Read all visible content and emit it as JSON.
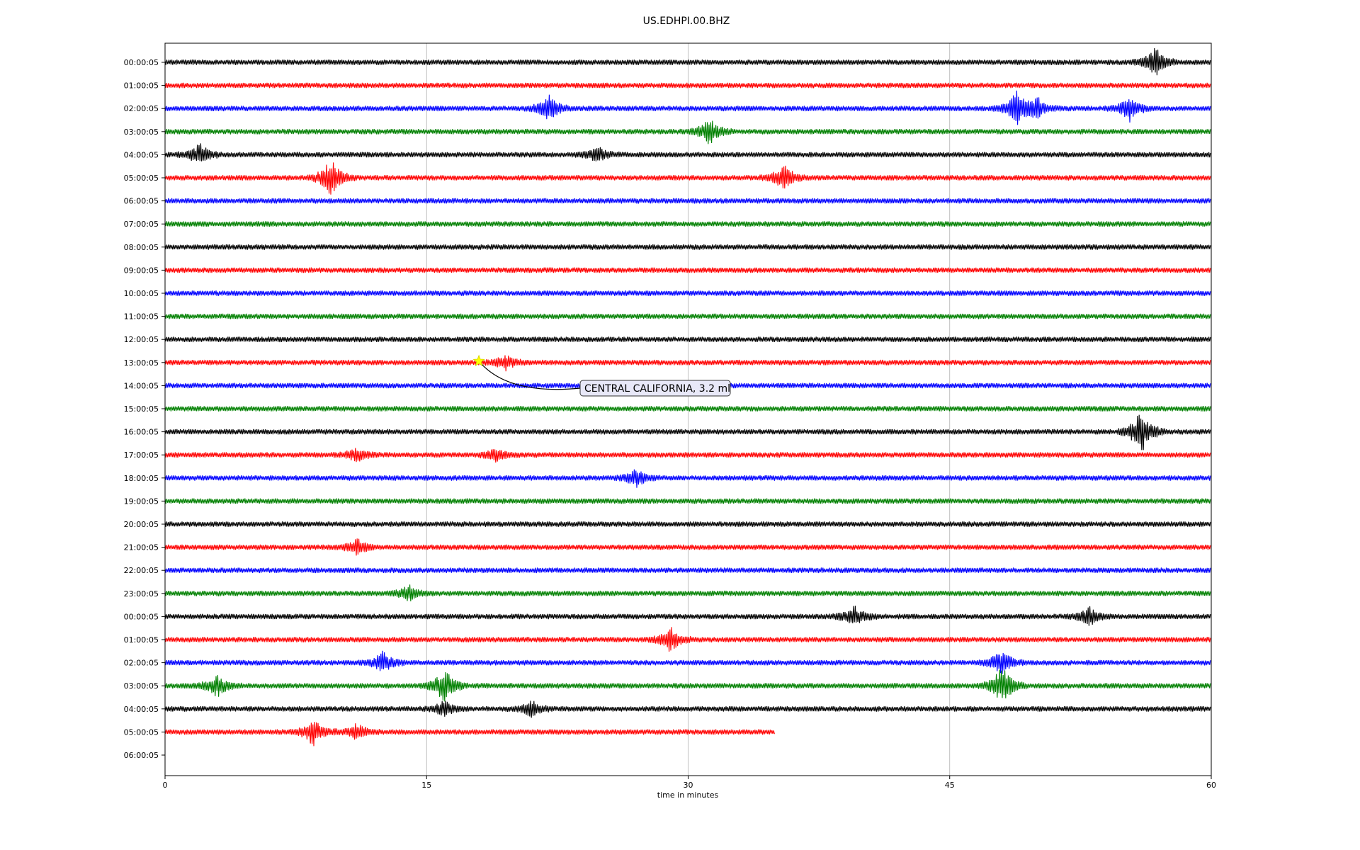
{
  "chart_data": {
    "type": "line",
    "title": "US.EDHPI.00.BHZ",
    "xlabel": "time in minutes",
    "ylabel": "",
    "xlim": [
      0,
      60
    ],
    "x_ticks": [
      "0",
      "15",
      "30",
      "45",
      "60"
    ],
    "x_tick_values": [
      0,
      15,
      30,
      45,
      60
    ],
    "grid": "vertical",
    "row_labels": [
      "00:00:05",
      "01:00:05",
      "02:00:05",
      "03:00:05",
      "04:00:05",
      "05:00:05",
      "06:00:05",
      "07:00:05",
      "08:00:05",
      "09:00:05",
      "10:00:05",
      "11:00:05",
      "12:00:05",
      "13:00:05",
      "14:00:05",
      "15:00:05",
      "16:00:05",
      "17:00:05",
      "18:00:05",
      "19:00:05",
      "20:00:05",
      "21:00:05",
      "22:00:05",
      "23:00:05",
      "00:00:05",
      "01:00:05",
      "02:00:05",
      "03:00:05",
      "04:00:05",
      "05:00:05",
      "06:00:05"
    ],
    "trace_colors": [
      "#000000",
      "#ff0000",
      "#0000ff",
      "#008000"
    ],
    "last_trace_end_minutes": 35,
    "bursts": [
      {
        "row": 0,
        "minute": 56.8,
        "amp": 1.1
      },
      {
        "row": 2,
        "minute": 22,
        "amp": 1.0
      },
      {
        "row": 2,
        "minute": 48.8,
        "amp": 1.3
      },
      {
        "row": 2,
        "minute": 50,
        "amp": 0.8
      },
      {
        "row": 2,
        "minute": 55.3,
        "amp": 1.0
      },
      {
        "row": 3,
        "minute": 31.2,
        "amp": 1.0
      },
      {
        "row": 4,
        "minute": 2,
        "amp": 0.8
      },
      {
        "row": 4,
        "minute": 24.8,
        "amp": 0.6
      },
      {
        "row": 5,
        "minute": 9.5,
        "amp": 1.5
      },
      {
        "row": 5,
        "minute": 35.5,
        "amp": 1.0
      },
      {
        "row": 13,
        "minute": 19.5,
        "amp": 0.6
      },
      {
        "row": 16,
        "minute": 56,
        "amp": 1.8
      },
      {
        "row": 17,
        "minute": 11,
        "amp": 0.5
      },
      {
        "row": 17,
        "minute": 19,
        "amp": 0.5
      },
      {
        "row": 18,
        "minute": 27,
        "amp": 0.7
      },
      {
        "row": 21,
        "minute": 11,
        "amp": 0.6
      },
      {
        "row": 23,
        "minute": 14,
        "amp": 0.6
      },
      {
        "row": 24,
        "minute": 39.5,
        "amp": 0.8
      },
      {
        "row": 24,
        "minute": 53,
        "amp": 0.7
      },
      {
        "row": 25,
        "minute": 29,
        "amp": 0.9
      },
      {
        "row": 26,
        "minute": 12.5,
        "amp": 0.8
      },
      {
        "row": 26,
        "minute": 48,
        "amp": 1.0
      },
      {
        "row": 27,
        "minute": 3,
        "amp": 0.9
      },
      {
        "row": 27,
        "minute": 16,
        "amp": 1.4
      },
      {
        "row": 27,
        "minute": 48,
        "amp": 1.5
      },
      {
        "row": 28,
        "minute": 16,
        "amp": 0.6
      },
      {
        "row": 28,
        "minute": 21,
        "amp": 0.6
      },
      {
        "row": 29,
        "minute": 8.5,
        "amp": 1.0
      },
      {
        "row": 29,
        "minute": 11,
        "amp": 0.6
      }
    ],
    "events": [
      {
        "row": 13,
        "minute": 18,
        "marker": "star",
        "marker_color": "#ffff00",
        "label": "CENTRAL CALIFORNIA, 3.2 ml"
      }
    ]
  }
}
